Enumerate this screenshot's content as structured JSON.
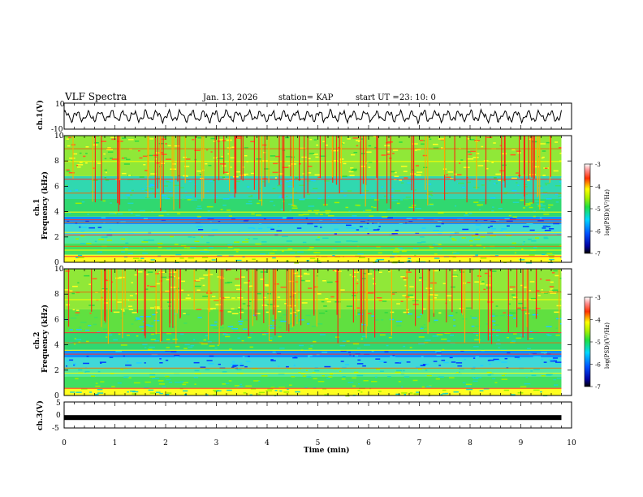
{
  "chart_data": [
    {
      "type": "line",
      "name": "ch1-waveform",
      "title": "VLF Spectra",
      "date": "Jan. 13, 2026",
      "station": "station= KAP",
      "start": "start UT =",
      "start_time": "23: 10: 0",
      "ylabel": "ch.1(V)",
      "ylim": [
        -10,
        10
      ],
      "yticks": [
        "10",
        "-10"
      ],
      "xlim": [
        0,
        10
      ],
      "amplitude": 5
    },
    {
      "type": "heatmap",
      "name": "ch1-spectrogram",
      "ylabel": "Frequency (kHz)",
      "channel": "ch.1",
      "ylim": [
        0,
        10
      ],
      "yticks": [
        "0",
        "2",
        "4",
        "6",
        "8",
        "10"
      ],
      "xlim": [
        0,
        9.8
      ],
      "colorbar": {
        "label": "log(PSD)(V²/Hz)",
        "range": [
          -7,
          -3
        ],
        "ticks": [
          "-3",
          "-4",
          "-5",
          "-6",
          "-7"
        ]
      },
      "bands_khz": [
        0.5,
        1.0,
        1.3,
        2.2,
        2.4,
        3.2,
        3.4,
        4.0,
        5.5,
        6.6,
        8.0,
        9.0
      ]
    },
    {
      "type": "heatmap",
      "name": "ch2-spectrogram",
      "ylabel": "Frequency (kHz)",
      "channel": "ch.2",
      "ylim": [
        0,
        10
      ],
      "yticks": [
        "0",
        "2",
        "4",
        "6",
        "8",
        "10"
      ],
      "xlim": [
        0,
        9.8
      ],
      "colorbar": {
        "label": "log(PSD)(V²/Hz)",
        "range": [
          -7,
          -3
        ],
        "ticks": [
          "-3",
          "-4",
          "-5",
          "-6",
          "-7"
        ]
      },
      "bands_khz": [
        0.6,
        1.8,
        2.2,
        3.3,
        3.6,
        4.2,
        5.0,
        7.6,
        8.2
      ]
    },
    {
      "type": "line",
      "name": "ch3-trace",
      "ylabel": "ch.3(V)",
      "ylim": [
        -5,
        5
      ],
      "yticks": [
        "5",
        "0",
        "-5"
      ],
      "value": -1,
      "xlim": [
        0,
        9.8
      ]
    }
  ],
  "xaxis": {
    "label": "Time (min)",
    "range": [
      0,
      10
    ],
    "ticks": [
      "0",
      "1",
      "2",
      "3",
      "4",
      "5",
      "6",
      "7",
      "8",
      "9",
      "10"
    ]
  }
}
